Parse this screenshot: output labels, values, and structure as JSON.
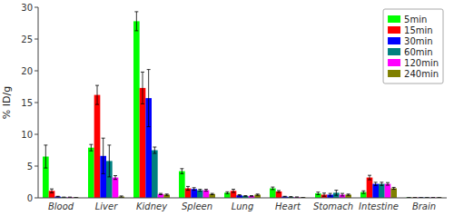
{
  "chart_data": {
    "type": "bar",
    "y_label": "% ID/g",
    "categories": [
      "Blood",
      "Liver",
      "Kidney",
      "Spleen",
      "Lung",
      "Heart",
      "Stomach",
      "Intestine",
      "Brain"
    ],
    "series": [
      {
        "name": "5min",
        "color": "#00ff00",
        "values": [
          6.5,
          7.9,
          27.8,
          4.2,
          0.8,
          1.5,
          0.7,
          0.9,
          0.05
        ],
        "errors": [
          1.8,
          0.5,
          1.5,
          0.4,
          0.15,
          0.2,
          0.2,
          0.2,
          0.0
        ]
      },
      {
        "name": "15min",
        "color": "#ff0000",
        "values": [
          1.1,
          16.2,
          17.3,
          1.5,
          1.1,
          1.0,
          0.5,
          3.2,
          0.05
        ],
        "errors": [
          0.3,
          1.5,
          2.5,
          0.3,
          0.25,
          0.15,
          0.25,
          0.35,
          0.0
        ]
      },
      {
        "name": "30min",
        "color": "#0000ff",
        "values": [
          0.2,
          6.6,
          15.7,
          1.4,
          0.4,
          0.2,
          0.5,
          2.2,
          0.05
        ],
        "errors": [
          0.05,
          2.8,
          4.5,
          0.2,
          0.1,
          0.05,
          0.2,
          0.25,
          0.0
        ]
      },
      {
        "name": "60min",
        "color": "#008080",
        "values": [
          0.1,
          5.8,
          7.5,
          1.2,
          0.3,
          0.15,
          0.8,
          2.2,
          0.05
        ],
        "errors": [
          0.0,
          2.5,
          0.5,
          0.15,
          0.05,
          0.05,
          0.4,
          0.25,
          0.0
        ]
      },
      {
        "name": "120min",
        "color": "#ff00ff",
        "values": [
          0.1,
          3.2,
          0.6,
          1.2,
          0.3,
          0.1,
          0.5,
          2.2,
          0.05
        ],
        "errors": [
          0.0,
          0.3,
          0.1,
          0.15,
          0.05,
          0.05,
          0.2,
          0.2,
          0.0
        ]
      },
      {
        "name": "240min",
        "color": "#808000",
        "values": [
          0.05,
          0.2,
          0.5,
          0.6,
          0.5,
          0.05,
          0.5,
          1.5,
          0.05
        ],
        "errors": [
          0.0,
          0.1,
          0.1,
          0.1,
          0.1,
          0.0,
          0.1,
          0.15,
          0.0
        ]
      }
    ],
    "ylim": [
      0,
      30
    ],
    "yticks": [
      0,
      5,
      10,
      15,
      20,
      25,
      30
    ],
    "legend": "upper right"
  }
}
